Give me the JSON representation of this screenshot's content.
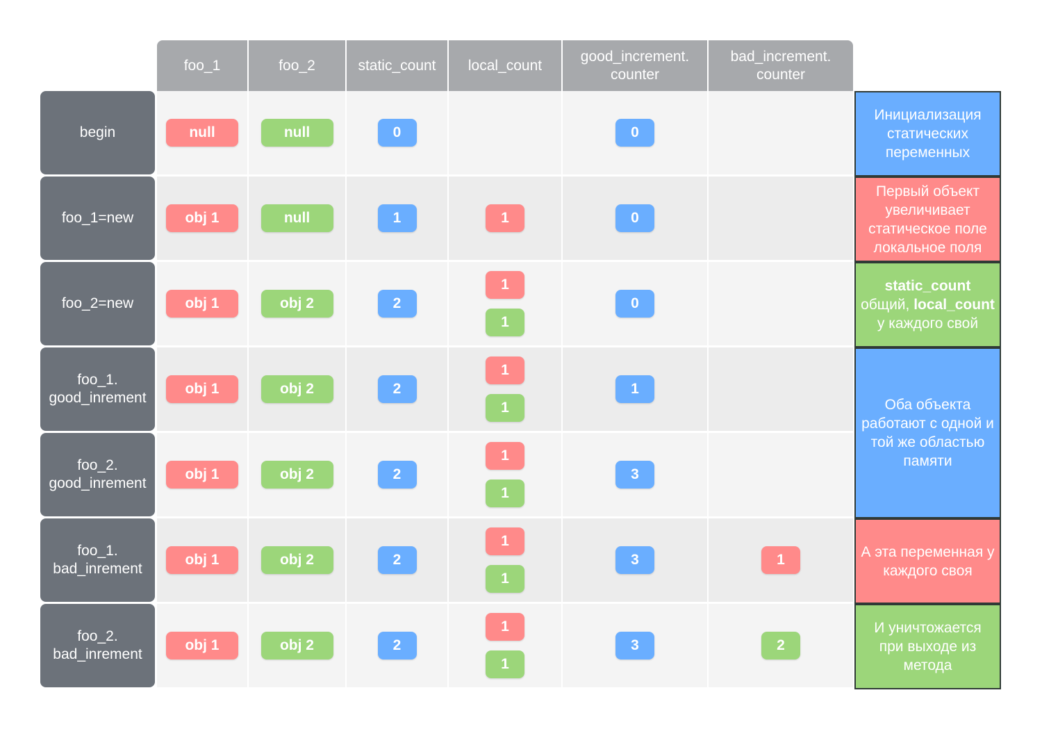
{
  "header": {
    "columns": [
      "foo_1",
      "foo_2",
      "static_count",
      "local_count",
      "good_increment.\ncounter",
      "bad_increment.\ncounter"
    ]
  },
  "rows": [
    {
      "label": "begin",
      "cells": [
        [
          {
            "text": "null",
            "color": "#ff8a8a"
          }
        ],
        [
          {
            "text": "null",
            "color": "#9cd67a"
          }
        ],
        [
          {
            "text": "0",
            "color": "#6aaeff"
          }
        ],
        [],
        [
          {
            "text": "0",
            "color": "#6aaeff"
          }
        ],
        []
      ]
    },
    {
      "label": "foo_1=new",
      "cells": [
        [
          {
            "text": "obj 1",
            "color": "#ff8a8a"
          }
        ],
        [
          {
            "text": "null",
            "color": "#9cd67a"
          }
        ],
        [
          {
            "text": "1",
            "color": "#6aaeff"
          }
        ],
        [
          {
            "text": "1",
            "color": "#ff8a8a"
          }
        ],
        [
          {
            "text": "0",
            "color": "#6aaeff"
          }
        ],
        []
      ]
    },
    {
      "label": "foo_2=new",
      "cells": [
        [
          {
            "text": "obj 1",
            "color": "#ff8a8a"
          }
        ],
        [
          {
            "text": "obj 2",
            "color": "#9cd67a"
          }
        ],
        [
          {
            "text": "2",
            "color": "#6aaeff"
          }
        ],
        [
          {
            "text": "1",
            "color": "#ff8a8a"
          },
          {
            "text": "1",
            "color": "#9cd67a"
          }
        ],
        [
          {
            "text": "0",
            "color": "#6aaeff"
          }
        ],
        []
      ]
    },
    {
      "label": "foo_1.\ngood_inrement",
      "cells": [
        [
          {
            "text": "obj 1",
            "color": "#ff8a8a"
          }
        ],
        [
          {
            "text": "obj 2",
            "color": "#9cd67a"
          }
        ],
        [
          {
            "text": "2",
            "color": "#6aaeff"
          }
        ],
        [
          {
            "text": "1",
            "color": "#ff8a8a"
          },
          {
            "text": "1",
            "color": "#9cd67a"
          }
        ],
        [
          {
            "text": "1",
            "color": "#6aaeff"
          }
        ],
        []
      ]
    },
    {
      "label": "foo_2.\ngood_inrement",
      "cells": [
        [
          {
            "text": "obj 1",
            "color": "#ff8a8a"
          }
        ],
        [
          {
            "text": "obj 2",
            "color": "#9cd67a"
          }
        ],
        [
          {
            "text": "2",
            "color": "#6aaeff"
          }
        ],
        [
          {
            "text": "1",
            "color": "#ff8a8a"
          },
          {
            "text": "1",
            "color": "#9cd67a"
          }
        ],
        [
          {
            "text": "3",
            "color": "#6aaeff"
          }
        ],
        []
      ]
    },
    {
      "label": "foo_1.\nbad_inrement",
      "cells": [
        [
          {
            "text": "obj 1",
            "color": "#ff8a8a"
          }
        ],
        [
          {
            "text": "obj 2",
            "color": "#9cd67a"
          }
        ],
        [
          {
            "text": "2",
            "color": "#6aaeff"
          }
        ],
        [
          {
            "text": "1",
            "color": "#ff8a8a"
          },
          {
            "text": "1",
            "color": "#9cd67a"
          }
        ],
        [
          {
            "text": "3",
            "color": "#6aaeff"
          }
        ],
        [
          {
            "text": "1",
            "color": "#ff8a8a"
          }
        ]
      ]
    },
    {
      "label": "foo_2.\nbad_inrement",
      "cells": [
        [
          {
            "text": "obj 1",
            "color": "#ff8a8a"
          }
        ],
        [
          {
            "text": "obj 2",
            "color": "#9cd67a"
          }
        ],
        [
          {
            "text": "2",
            "color": "#6aaeff"
          }
        ],
        [
          {
            "text": "1",
            "color": "#ff8a8a"
          },
          {
            "text": "1",
            "color": "#9cd67a"
          }
        ],
        [
          {
            "text": "3",
            "color": "#6aaeff"
          }
        ],
        [
          {
            "text": "2",
            "color": "#9cd67a"
          }
        ]
      ]
    }
  ],
  "notes": [
    {
      "color": "#6aaeff",
      "span": 1,
      "runs": [
        {
          "text": "Инициализация статических переменных"
        }
      ]
    },
    {
      "color": "#ff8a8a",
      "span": 1,
      "runs": [
        {
          "text": "Первый объект увеличивает статическое поле локальное поля"
        }
      ]
    },
    {
      "color": "#9cd67a",
      "span": 1,
      "runs": [
        {
          "text": "static_count",
          "bold": true
        },
        {
          "text": " общий, "
        },
        {
          "text": "local_count",
          "bold": true
        },
        {
          "text": " у каждого свой"
        }
      ]
    },
    {
      "color": "#6aaeff",
      "span": 2,
      "runs": [
        {
          "text": "Оба объекта работают с одной и той же областью памяти"
        }
      ]
    },
    {
      "color": "#ff8a8a",
      "span": 1,
      "runs": [
        {
          "text": "А эта переменная у каждого своя"
        }
      ]
    },
    {
      "color": "#9cd67a",
      "span": 1,
      "runs": [
        {
          "text": "И уничтожается при выходе из метода"
        }
      ]
    }
  ]
}
